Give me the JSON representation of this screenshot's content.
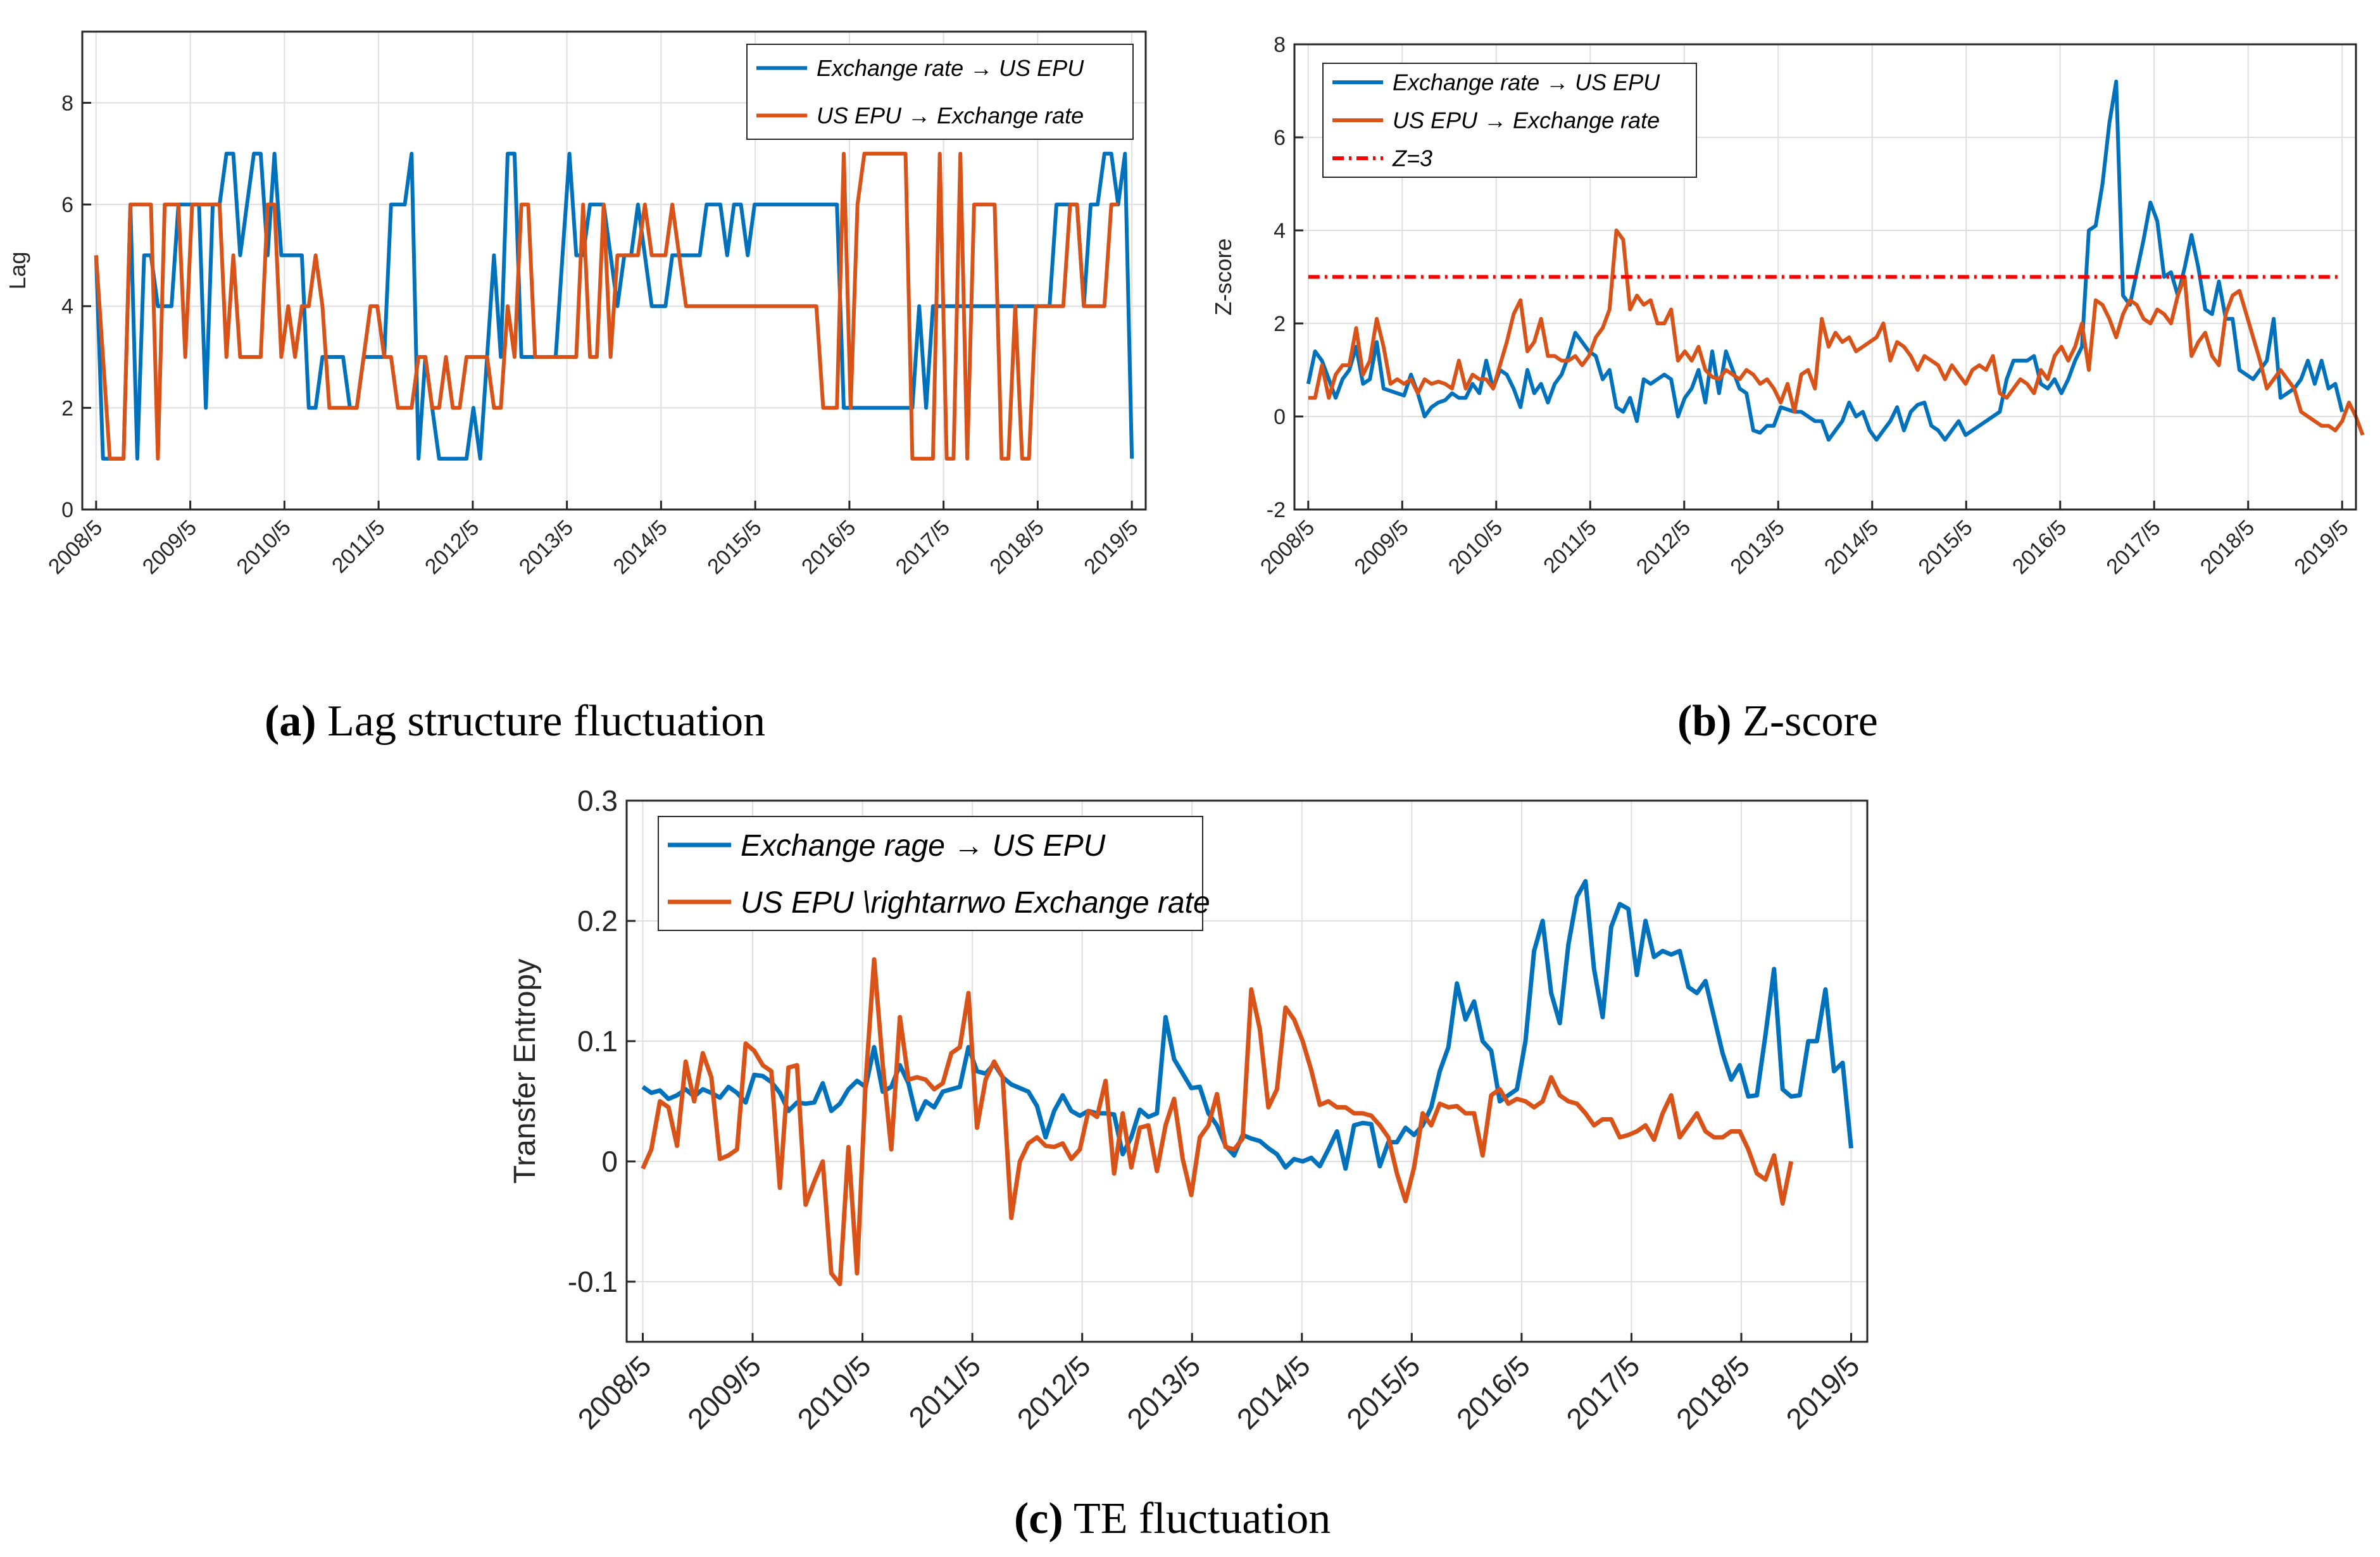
{
  "colors": {
    "blue": "#0072BD",
    "orange": "#D95319",
    "red": "#FF0000",
    "axis": "#262626",
    "grid": "#DFDFDF"
  },
  "captions": {
    "a": {
      "letter": "(a)",
      "text": "Lag structure fluctuation"
    },
    "b": {
      "letter": "(b)",
      "text": "Z-score"
    },
    "c": {
      "letter": "(c)",
      "text": "TE fluctuation"
    }
  },
  "chart_data": [
    {
      "id": "a",
      "type": "line",
      "title": "",
      "xlabel": "",
      "ylabel": "Lag",
      "ylim": [
        0,
        9.4
      ],
      "yticks": [
        0,
        2,
        4,
        6,
        8
      ],
      "xticks": [
        "2008/5",
        "2009/5",
        "2010/5",
        "2011/5",
        "2012/5",
        "2013/5",
        "2014/5",
        "2015/5",
        "2016/5",
        "2017/5",
        "2018/5",
        "2019/5"
      ],
      "grid": true,
      "legend_position": "top-right",
      "series": [
        {
          "name": "Exchange rate → US EPU",
          "color": "blue",
          "values": [
            5,
            1,
            1,
            1,
            1,
            6,
            1,
            5,
            5,
            4,
            4,
            4,
            6,
            6,
            6,
            6,
            2,
            6,
            6,
            7,
            7,
            5,
            6,
            7,
            7,
            5,
            7,
            5,
            5,
            5,
            5,
            2,
            2,
            3,
            3,
            3,
            3,
            2,
            2,
            3,
            3,
            3,
            3,
            6,
            6,
            6,
            7,
            1,
            3,
            2,
            1,
            1,
            1,
            1,
            1,
            2,
            1,
            3,
            5,
            3,
            7,
            7,
            3,
            3,
            3,
            3,
            3,
            3,
            5,
            7,
            5,
            5,
            6,
            6,
            6,
            5,
            4,
            5,
            5,
            6,
            5,
            4,
            4,
            4,
            5,
            5,
            5,
            5,
            5,
            6,
            6,
            6,
            5,
            6,
            6,
            5,
            6,
            6,
            6,
            6,
            6,
            6,
            6,
            6,
            6,
            6,
            6,
            6,
            6,
            2,
            2,
            2,
            2,
            2,
            2,
            2,
            2,
            2,
            2,
            2,
            4,
            2,
            4,
            4,
            4,
            4,
            4,
            4,
            4,
            4,
            4,
            4,
            4,
            4,
            4,
            4,
            4,
            4,
            4,
            4,
            6,
            6,
            6,
            6,
            4,
            6,
            6,
            7,
            7,
            6,
            7,
            1
          ]
        },
        {
          "name": "US EPU → Exchange rate",
          "color": "orange",
          "values": [
            5,
            3,
            1,
            1,
            1,
            6,
            6,
            6,
            6,
            1,
            6,
            6,
            6,
            3,
            6,
            6,
            6,
            6,
            6,
            3,
            5,
            3,
            3,
            3,
            3,
            6,
            6,
            3,
            4,
            3,
            4,
            4,
            5,
            4,
            2,
            2,
            2,
            2,
            2,
            3,
            4,
            4,
            3,
            3,
            2,
            2,
            2,
            3,
            3,
            2,
            2,
            3,
            2,
            2,
            3,
            3,
            3,
            3,
            2,
            2,
            4,
            3,
            6,
            6,
            3,
            3,
            3,
            3,
            3,
            3,
            3,
            6,
            3,
            3,
            6,
            3,
            5,
            5,
            5,
            5,
            6,
            5,
            5,
            5,
            6,
            5,
            4,
            4,
            4,
            4,
            4,
            4,
            4,
            4,
            4,
            4,
            4,
            4,
            4,
            4,
            4,
            4,
            4,
            4,
            4,
            4,
            2,
            2,
            2,
            7,
            2,
            6,
            7,
            7,
            7,
            7,
            7,
            7,
            7,
            1,
            1,
            1,
            1,
            7,
            1,
            1,
            7,
            1,
            6,
            6,
            6,
            6,
            1,
            1,
            4,
            1,
            1,
            4,
            4,
            4,
            4,
            4,
            6,
            6,
            4,
            4,
            4,
            4,
            6,
            6
          ]
        }
      ]
    },
    {
      "id": "b",
      "type": "line",
      "title": "",
      "xlabel": "",
      "ylabel": "Z-score",
      "ylim": [
        -2,
        8
      ],
      "yticks": [
        -2,
        0,
        2,
        4,
        6,
        8
      ],
      "xticks": [
        "2008/5",
        "2009/5",
        "2010/5",
        "2011/5",
        "2012/5",
        "2013/5",
        "2014/5",
        "2015/5",
        "2016/5",
        "2017/5",
        "2018/5",
        "2019/5"
      ],
      "grid": true,
      "legend_position": "top-left",
      "series": [
        {
          "name": "Exchange rate → US EPU",
          "color": "blue",
          "values": [
            0.7,
            1.4,
            1.2,
            0.8,
            0.4,
            0.8,
            1.0,
            1.5,
            0.7,
            0.8,
            1.6,
            0.6,
            0.55,
            0.5,
            0.45,
            0.9,
            0.5,
            0.0,
            0.2,
            0.3,
            0.35,
            0.5,
            0.4,
            0.4,
            0.7,
            0.5,
            1.2,
            0.6,
            1.0,
            0.9,
            0.6,
            0.2,
            1.0,
            0.5,
            0.7,
            0.3,
            0.7,
            0.9,
            1.3,
            1.8,
            1.6,
            1.4,
            1.3,
            0.8,
            1.0,
            0.2,
            0.1,
            0.4,
            -0.1,
            0.8,
            0.7,
            0.8,
            0.9,
            0.8,
            0.0,
            0.4,
            0.6,
            1.0,
            0.3,
            1.4,
            0.5,
            1.4,
            1.0,
            0.6,
            0.5,
            -0.3,
            -0.35,
            -0.2,
            -0.2,
            0.2,
            0.15,
            0.1,
            0.1,
            0.0,
            -0.1,
            -0.1,
            -0.5,
            -0.3,
            -0.1,
            0.3,
            0.0,
            0.1,
            -0.3,
            -0.5,
            -0.3,
            -0.1,
            0.2,
            -0.3,
            0.1,
            0.25,
            0.3,
            -0.2,
            -0.3,
            -0.5,
            -0.3,
            -0.1,
            -0.4,
            -0.3,
            -0.2,
            -0.1,
            0.0,
            0.1,
            0.8,
            1.2,
            1.2,
            1.2,
            1.3,
            0.7,
            0.6,
            0.8,
            0.5,
            0.8,
            1.2,
            1.5,
            4.0,
            4.1,
            5.0,
            6.3,
            7.2,
            2.6,
            2.4,
            3.1,
            3.8,
            4.6,
            4.2,
            3.0,
            3.1,
            2.6,
            3.2,
            3.9,
            3.2,
            2.3,
            2.2,
            2.9,
            2.1,
            2.1,
            1.0,
            0.9,
            0.8,
            1.0,
            1.2,
            2.1,
            0.4,
            0.5,
            0.6,
            0.8,
            1.2,
            0.7,
            1.2,
            0.6,
            0.7,
            0.1
          ]
        },
        {
          "name": "US EPU → Exchange rate",
          "color": "orange",
          "values": [
            0.4,
            0.4,
            1.1,
            0.4,
            0.9,
            1.1,
            1.1,
            1.9,
            0.9,
            1.2,
            2.1,
            1.5,
            0.7,
            0.8,
            0.7,
            0.8,
            0.5,
            0.8,
            0.7,
            0.75,
            0.7,
            0.6,
            1.2,
            0.6,
            0.9,
            0.8,
            0.8,
            0.6,
            1.1,
            1.6,
            2.2,
            2.5,
            1.4,
            1.6,
            2.1,
            1.3,
            1.3,
            1.2,
            1.2,
            1.3,
            1.1,
            1.3,
            1.7,
            1.9,
            2.3,
            4.0,
            3.8,
            2.3,
            2.6,
            2.4,
            2.5,
            2.0,
            2.0,
            2.3,
            1.2,
            1.4,
            1.2,
            1.5,
            1.0,
            0.85,
            0.8,
            1.0,
            0.9,
            0.8,
            1.0,
            0.9,
            0.7,
            0.8,
            0.6,
            0.3,
            0.7,
            0.1,
            0.9,
            1.0,
            0.6,
            2.1,
            1.5,
            1.8,
            1.6,
            1.7,
            1.4,
            1.5,
            1.6,
            1.7,
            2.0,
            1.2,
            1.6,
            1.5,
            1.3,
            1.0,
            1.3,
            1.2,
            1.1,
            0.8,
            1.1,
            0.9,
            0.7,
            1.0,
            1.1,
            1.0,
            1.3,
            0.5,
            0.4,
            0.6,
            0.8,
            0.7,
            0.5,
            1.0,
            0.8,
            1.3,
            1.5,
            1.2,
            1.5,
            2.0,
            1.0,
            2.5,
            2.4,
            2.1,
            1.7,
            2.2,
            2.5,
            2.4,
            2.1,
            2.0,
            2.3,
            2.2,
            2.0,
            2.6,
            3.0,
            1.3,
            1.6,
            1.8,
            1.3,
            1.1,
            2.2,
            2.6,
            2.7,
            2.2,
            1.7,
            1.2,
            0.6,
            0.8,
            1.0,
            0.8,
            0.6,
            0.1,
            0.0,
            -0.1,
            -0.2,
            -0.2,
            -0.3,
            -0.1,
            0.3,
            0.0,
            -0.4
          ]
        },
        {
          "name": "Z=3",
          "color": "red",
          "dashed": true,
          "constant": 3
        }
      ]
    },
    {
      "id": "c",
      "type": "line",
      "title": "",
      "xlabel": "",
      "ylabel": "Transfer Entropy",
      "ylim": [
        -0.15,
        0.3
      ],
      "yticks": [
        -0.1,
        0,
        0.1,
        0.2,
        0.3
      ],
      "ytick_labels": [
        "-0.1",
        "0",
        "0.1",
        "0.2",
        "0.3"
      ],
      "xticks": [
        "2008/5",
        "2009/5",
        "2010/5",
        "2011/5",
        "2012/5",
        "2013/5",
        "2014/5",
        "2015/5",
        "2016/5",
        "2017/5",
        "2018/5",
        "2019/5"
      ],
      "grid": true,
      "legend_position": "top-left",
      "series": [
        {
          "name": "Exchange rage → US EPU",
          "color": "blue",
          "values": [
            0.062,
            0.057,
            0.059,
            0.052,
            0.055,
            0.06,
            0.054,
            0.06,
            0.057,
            0.053,
            0.062,
            0.057,
            0.049,
            0.072,
            0.071,
            0.066,
            0.057,
            0.042,
            0.049,
            0.048,
            0.049,
            0.065,
            0.042,
            0.048,
            0.06,
            0.067,
            0.062,
            0.095,
            0.058,
            0.062,
            0.08,
            0.065,
            0.035,
            0.05,
            0.045,
            0.058,
            0.06,
            0.062,
            0.095,
            0.075,
            0.073,
            0.081,
            0.07,
            0.064,
            0.061,
            0.058,
            0.046,
            0.02,
            0.042,
            0.055,
            0.042,
            0.038,
            0.042,
            0.04,
            0.04,
            0.039,
            0.006,
            0.02,
            0.043,
            0.037,
            0.04,
            0.12,
            0.085,
            0.073,
            0.061,
            0.062,
            0.04,
            0.03,
            0.013,
            0.005,
            0.022,
            0.019,
            0.017,
            0.011,
            0.006,
            -0.005,
            0.002,
            0.0,
            0.003,
            -0.004,
            0.01,
            0.025,
            -0.006,
            0.03,
            0.032,
            0.031,
            -0.004,
            0.016,
            0.016,
            0.028,
            0.022,
            0.03,
            0.045,
            0.075,
            0.095,
            0.148,
            0.118,
            0.133,
            0.1,
            0.092,
            0.05,
            0.055,
            0.06,
            0.1,
            0.175,
            0.2,
            0.14,
            0.115,
            0.18,
            0.22,
            0.233,
            0.16,
            0.12,
            0.195,
            0.214,
            0.21,
            0.155,
            0.2,
            0.17,
            0.175,
            0.172,
            0.175,
            0.145,
            0.14,
            0.15,
            0.12,
            0.09,
            0.068,
            0.08,
            0.054,
            0.055,
            0.105,
            0.16,
            0.06,
            0.054,
            0.055,
            0.1,
            0.1,
            0.143,
            0.075,
            0.082,
            0.011
          ]
        },
        {
          "name": "US EPU \\rightarrwo Exchange rate",
          "color": "orange",
          "values": [
            -0.006,
            0.01,
            0.05,
            0.045,
            0.013,
            0.083,
            0.05,
            0.09,
            0.07,
            0.002,
            0.005,
            0.01,
            0.098,
            0.092,
            0.08,
            0.075,
            -0.022,
            0.078,
            0.08,
            -0.036,
            -0.017,
            0.0,
            -0.093,
            -0.102,
            0.012,
            -0.093,
            0.065,
            0.168,
            0.08,
            0.01,
            0.12,
            0.068,
            0.07,
            0.068,
            0.06,
            0.065,
            0.09,
            0.095,
            0.14,
            0.028,
            0.068,
            0.083,
            0.07,
            -0.047,
            0.0,
            0.015,
            0.02,
            0.013,
            0.012,
            0.015,
            0.002,
            0.01,
            0.042,
            0.037,
            0.067,
            -0.01,
            0.04,
            -0.005,
            0.028,
            0.03,
            -0.008,
            0.03,
            0.052,
            0.002,
            -0.028,
            0.02,
            0.03,
            0.056,
            0.012,
            0.01,
            0.019,
            0.143,
            0.11,
            0.045,
            0.06,
            0.128,
            0.118,
            0.1,
            0.076,
            0.047,
            0.05,
            0.045,
            0.045,
            0.04,
            0.04,
            0.038,
            0.03,
            0.02,
            -0.01,
            -0.033,
            -0.005,
            0.04,
            0.03,
            0.048,
            0.045,
            0.046,
            0.04,
            0.04,
            0.005,
            0.055,
            0.06,
            0.048,
            0.052,
            0.05,
            0.045,
            0.05,
            0.07,
            0.055,
            0.05,
            0.048,
            0.04,
            0.03,
            0.035,
            0.035,
            0.02,
            0.022,
            0.025,
            0.03,
            0.018,
            0.04,
            0.055,
            0.02,
            0.03,
            0.04,
            0.025,
            0.02,
            0.02,
            0.025,
            0.025,
            0.01,
            -0.01,
            -0.015,
            0.005,
            -0.035,
            0.0
          ]
        }
      ]
    }
  ]
}
